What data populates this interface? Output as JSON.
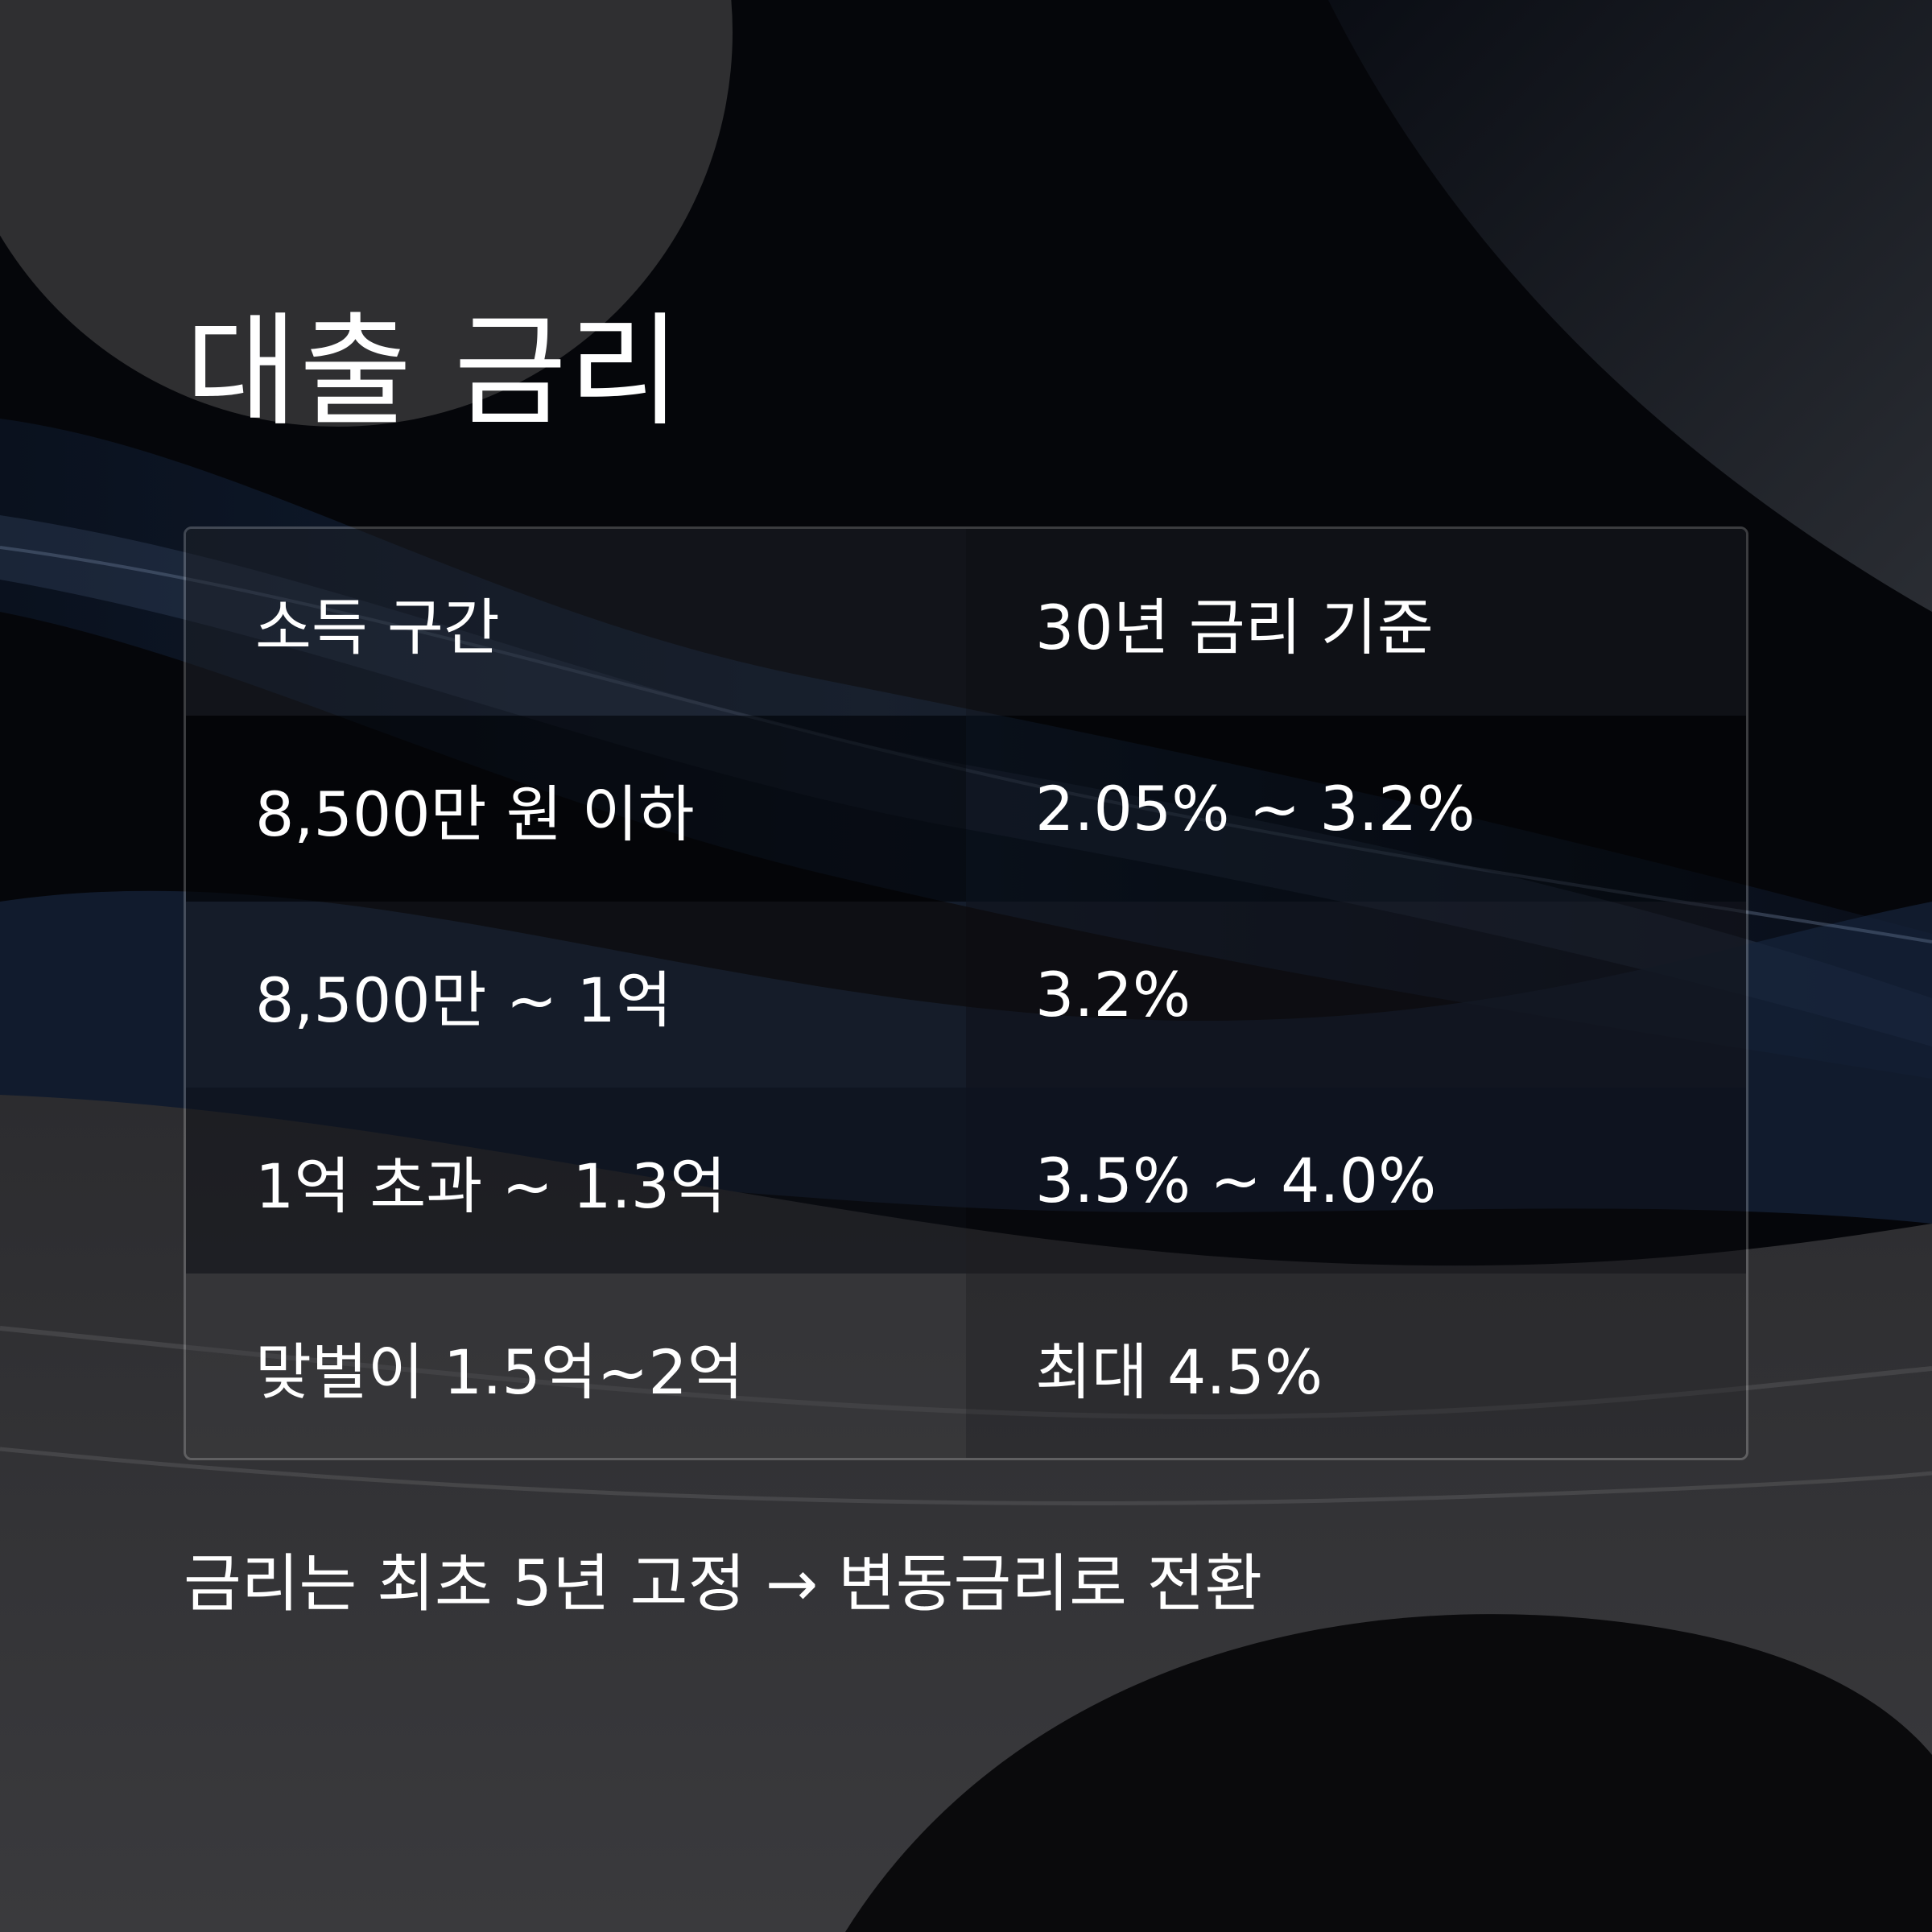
{
  "title": "대출 금리",
  "table": {
    "headers": [
      "소득 구간",
      "30년 금리 기준"
    ],
    "rows": [
      {
        "income": "8,500만 원 이하",
        "rate": "2.05% ~ 3.2%"
      },
      {
        "income": "8,500만 ~ 1억",
        "rate": "3.2%"
      },
      {
        "income": "1억 초과 ~ 1.3억",
        "rate": "3.5% ~ 4.0%"
      },
      {
        "income": "맞벌이 1.5억~2억",
        "rate": "최대 4.5%"
      }
    ]
  },
  "footnote": "금리는 최초 5년 고정 → 변동금리로 전환",
  "colors": {
    "background": "#05060a",
    "text": "#ffffff",
    "wave_blue": "#1c3356",
    "wave_gray": "#3a3a3d"
  }
}
